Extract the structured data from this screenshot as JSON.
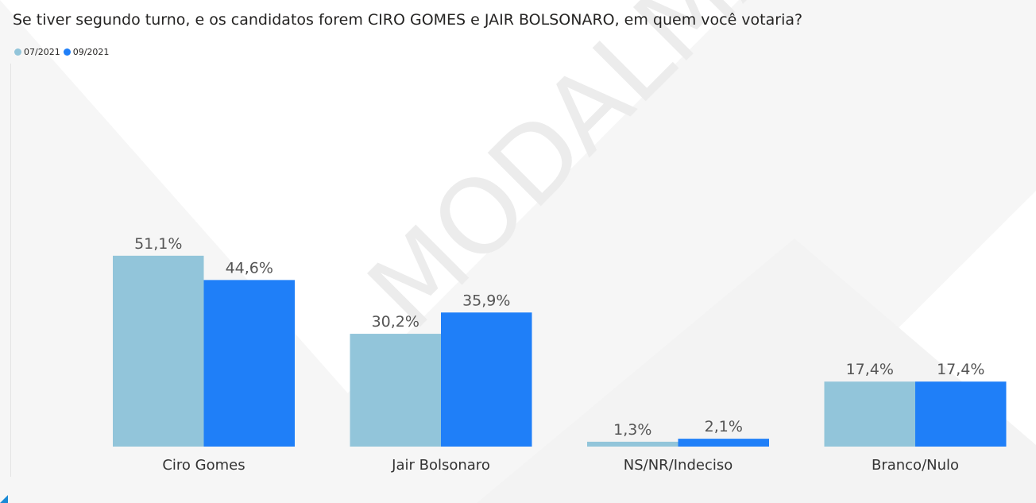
{
  "chart_data": {
    "type": "bar",
    "title": "Se tiver segundo turno, e os candidatos forem CIRO GOMES e JAIR BOLSONARO, em quem você votaria?",
    "categories": [
      "Ciro Gomes",
      "Jair Bolsonaro",
      "NS/NR/Indeciso",
      "Branco/Nulo"
    ],
    "series": [
      {
        "name": "07/2021",
        "color": "#92c5da",
        "values": [
          51.1,
          30.2,
          1.3,
          17.4
        ],
        "labels": [
          "51,1%",
          "30,2%",
          "1,3%",
          "17,4%"
        ]
      },
      {
        "name": "09/2021",
        "color": "#1f7ff8",
        "values": [
          44.6,
          35.9,
          2.1,
          17.4
        ],
        "labels": [
          "44,6%",
          "35,9%",
          "2,1%",
          "17,4%"
        ]
      }
    ],
    "xlabel": "",
    "ylabel": "",
    "ylim": [
      0,
      100
    ],
    "grid": false,
    "legend": "top-left"
  },
  "watermark": "MODALMAIS"
}
